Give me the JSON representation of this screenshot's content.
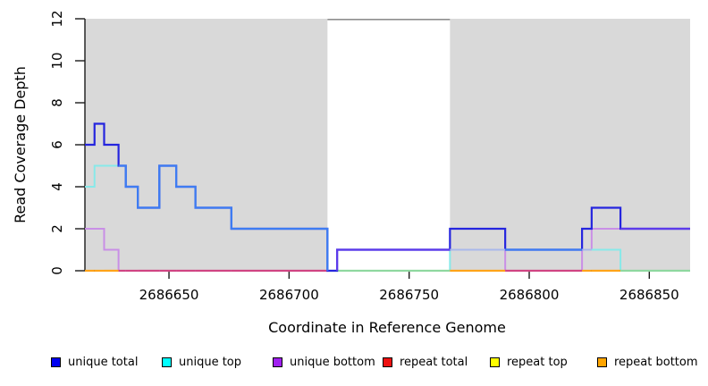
{
  "chart_data": {
    "type": "line",
    "subtype": "step-coverage",
    "title": "",
    "xlabel": "Coordinate in Reference Genome",
    "ylabel": "Read Coverage Depth",
    "xlim": [
      2686615,
      2686867
    ],
    "ylim": [
      0,
      12
    ],
    "x_ticks": [
      2686650,
      2686700,
      2686750,
      2686800,
      2686850
    ],
    "y_ticks": [
      0,
      2,
      4,
      6,
      8,
      10,
      12
    ],
    "grid": false,
    "legend_position": "bottom",
    "shading": {
      "shaded_color": "#D9D9D9",
      "unshaded_region": [
        2686716,
        2686767
      ],
      "cap_line_color": "#8F8F8F"
    },
    "series": [
      {
        "name": "unique total",
        "color": "#0000F0",
        "steps": [
          [
            2686615,
            6
          ],
          [
            2686619,
            7
          ],
          [
            2686623,
            6
          ],
          [
            2686629,
            5
          ],
          [
            2686632,
            4
          ],
          [
            2686637,
            3
          ],
          [
            2686646,
            5
          ],
          [
            2686653,
            4
          ],
          [
            2686661,
            3
          ],
          [
            2686676,
            2
          ],
          [
            2686716,
            0
          ],
          [
            2686720,
            1
          ],
          [
            2686767,
            2
          ],
          [
            2686790,
            1
          ],
          [
            2686822,
            2
          ],
          [
            2686826,
            3
          ],
          [
            2686838,
            2
          ]
        ]
      },
      {
        "name": "unique top",
        "color": "#00FFFF",
        "steps": [
          [
            2686615,
            4
          ],
          [
            2686619,
            5
          ],
          [
            2686632,
            4
          ],
          [
            2686637,
            3
          ],
          [
            2686646,
            5
          ],
          [
            2686653,
            4
          ],
          [
            2686661,
            3
          ],
          [
            2686676,
            2
          ],
          [
            2686716,
            0
          ],
          [
            2686767,
            1
          ],
          [
            2686838,
            0
          ]
        ]
      },
      {
        "name": "unique bottom",
        "color": "#A020F0",
        "steps": [
          [
            2686615,
            2
          ],
          [
            2686623,
            1
          ],
          [
            2686629,
            0
          ],
          [
            2686720,
            1
          ],
          [
            2686790,
            0
          ],
          [
            2686822,
            1
          ],
          [
            2686826,
            2
          ]
        ]
      },
      {
        "name": "repeat total",
        "color": "#EE1111",
        "steps": [
          [
            2686615,
            0
          ]
        ]
      },
      {
        "name": "repeat top",
        "color": "#FFFF00",
        "steps": [
          [
            2686615,
            0
          ]
        ]
      },
      {
        "name": "repeat bottom",
        "color": "#FFA500",
        "steps": [
          [
            2686615,
            0
          ]
        ]
      }
    ],
    "render_colors": {
      "total_alone": "#2525DE",
      "total_over_top": "#3E7CF2",
      "total_over_bottom": "#5C3AEA",
      "top_line": "#87E9E9",
      "top_over_bottom": "#A9B8EA",
      "bottom_line": "#C98FE6",
      "baseline_orange": "#FFA319",
      "baseline_crimson": "#D04583",
      "baseline_green": "#8FD8A0",
      "axis": "#1A1A1A"
    }
  },
  "axes": {
    "x_title": "Coordinate in Reference Genome",
    "y_title": "Read Coverage Depth"
  },
  "legend": {
    "items": [
      {
        "label": "unique total",
        "color": "#0000F0"
      },
      {
        "label": "unique top",
        "color": "#00FFFF"
      },
      {
        "label": "unique bottom",
        "color": "#A020F0"
      },
      {
        "label": "repeat total",
        "color": "#EE1111"
      },
      {
        "label": "repeat top",
        "color": "#FFFF00"
      },
      {
        "label": "repeat bottom",
        "color": "#FFA500"
      }
    ]
  }
}
